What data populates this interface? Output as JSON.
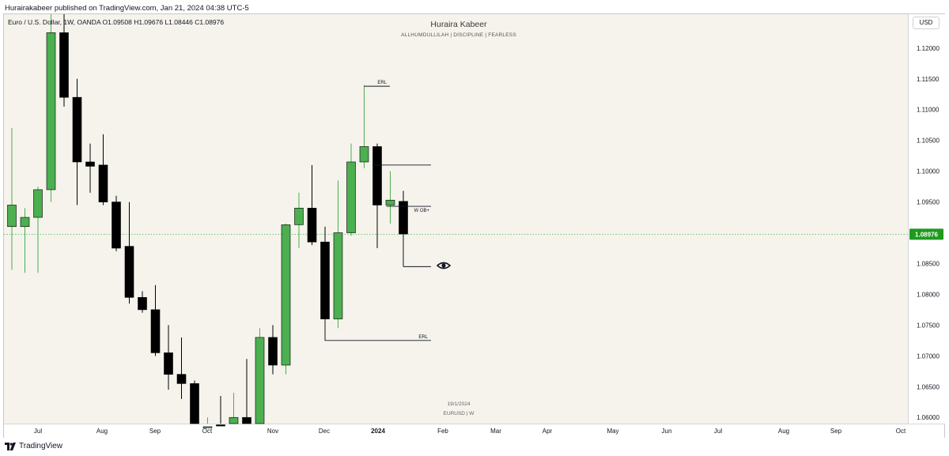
{
  "header": {
    "published_text": "Hurairakabeer published on TradingView.com, Jan 21, 2024 04:38 UTC-5"
  },
  "chart_header": {
    "symbol_text": "Euro / U.S. Dollar, 1W, OANDA  O1.09508  H1.09676  L1.08446  C1.08976",
    "watermark_title": "Huraira Kabeer",
    "watermark_subtitle": "ALLHUMDULLILAH  |  DISCIPLINE  |  FEARLESS",
    "watermark_date": "19/1/2024",
    "watermark_symbol": "EURUSD  |  W",
    "currency_label": "USD"
  },
  "footer": {
    "brand": "TradingView"
  },
  "colors": {
    "bullish": "#4caf50",
    "bearish": "#000000",
    "price_tag": "#1e9a1e",
    "price_line": "#4caf50",
    "background": "#f5f3ec"
  },
  "chart_data": {
    "type": "candlestick",
    "symbol": "EURUSD",
    "timeframe": "1W",
    "ylim": [
      1.059,
      1.1255
    ],
    "y_ticks": [
      "1.12000",
      "1.11500",
      "1.11000",
      "1.10500",
      "1.10000",
      "1.09500",
      "1.09000",
      "1.08500",
      "1.08000",
      "1.07500",
      "1.07000",
      "1.06500",
      "1.06000"
    ],
    "x_ticks": [
      "Jul",
      "Aug",
      "Sep",
      "Oct",
      "Nov",
      "Dec",
      "2024",
      "Feb",
      "Mar",
      "Apr",
      "May",
      "Jun",
      "Jul",
      "Aug",
      "Sep",
      "Oct"
    ],
    "current_price": "1.08976",
    "candles": [
      {
        "o": 1.091,
        "h": 1.107,
        "l": 1.084,
        "c": 1.0945
      },
      {
        "o": 1.091,
        "h": 1.094,
        "l": 1.0835,
        "c": 1.0925
      },
      {
        "o": 1.0925,
        "h": 1.0975,
        "l": 1.0835,
        "c": 1.097
      },
      {
        "o": 1.097,
        "h": 1.1275,
        "l": 1.095,
        "c": 1.1225
      },
      {
        "o": 1.1225,
        "h": 1.1255,
        "l": 1.1105,
        "c": 1.112
      },
      {
        "o": 1.112,
        "h": 1.115,
        "l": 1.0945,
        "c": 1.1015
      },
      {
        "o": 1.1015,
        "h": 1.1045,
        "l": 1.0965,
        "c": 1.1008
      },
      {
        "o": 1.101,
        "h": 1.106,
        "l": 1.0945,
        "c": 1.095
      },
      {
        "o": 1.095,
        "h": 1.096,
        "l": 1.087,
        "c": 1.0875
      },
      {
        "o": 1.0878,
        "h": 1.095,
        "l": 1.0785,
        "c": 1.0795
      },
      {
        "o": 1.0795,
        "h": 1.0805,
        "l": 1.077,
        "c": 1.0775
      },
      {
        "o": 1.0775,
        "h": 1.0815,
        "l": 1.07,
        "c": 1.0705
      },
      {
        "o": 1.0705,
        "h": 1.075,
        "l": 1.0645,
        "c": 1.067
      },
      {
        "o": 1.067,
        "h": 1.073,
        "l": 1.063,
        "c": 1.0655
      },
      {
        "o": 1.0655,
        "h": 1.066,
        "l": 1.049,
        "c": 1.054
      },
      {
        "o": 1.0575,
        "h": 1.06,
        "l": 1.0535,
        "c": 1.0585
      },
      {
        "o": 1.0588,
        "h": 1.0635,
        "l": 1.0545,
        "c": 1.0585
      },
      {
        "o": 1.059,
        "h": 1.064,
        "l": 1.056,
        "c": 1.06
      },
      {
        "o": 1.06,
        "h": 1.0695,
        "l": 1.0535,
        "c": 1.0588
      },
      {
        "o": 1.0585,
        "h": 1.0745,
        "l": 1.058,
        "c": 1.073
      },
      {
        "o": 1.073,
        "h": 1.075,
        "l": 1.067,
        "c": 1.0685
      },
      {
        "o": 1.0685,
        "h": 1.0915,
        "l": 1.067,
        "c": 1.0913
      },
      {
        "o": 1.0913,
        "h": 1.0965,
        "l": 1.0875,
        "c": 1.094
      },
      {
        "o": 1.094,
        "h": 1.101,
        "l": 1.088,
        "c": 1.0885
      },
      {
        "o": 1.0885,
        "h": 1.091,
        "l": 1.0725,
        "c": 1.076
      },
      {
        "o": 1.076,
        "h": 1.0985,
        "l": 1.0745,
        "c": 1.09
      },
      {
        "o": 1.09,
        "h": 1.1045,
        "l": 1.0895,
        "c": 1.1015
      },
      {
        "o": 1.1015,
        "h": 1.114,
        "l": 1.1005,
        "c": 1.104
      },
      {
        "o": 1.104,
        "h": 1.1045,
        "l": 1.0875,
        "c": 1.0945
      },
      {
        "o": 1.0945,
        "h": 1.1,
        "l": 1.0915,
        "c": 1.0953
      },
      {
        "o": 1.0951,
        "h": 1.0968,
        "l": 1.0845,
        "c": 1.0898
      }
    ],
    "annotations": [
      {
        "label": "ERL",
        "price": 1.1138
      },
      {
        "label": "",
        "price": 1.101
      },
      {
        "label": "W OB+",
        "price": 1.0943
      },
      {
        "label": "",
        "price": 1.0845
      },
      {
        "label": "ERL",
        "price": 1.0725
      }
    ]
  }
}
